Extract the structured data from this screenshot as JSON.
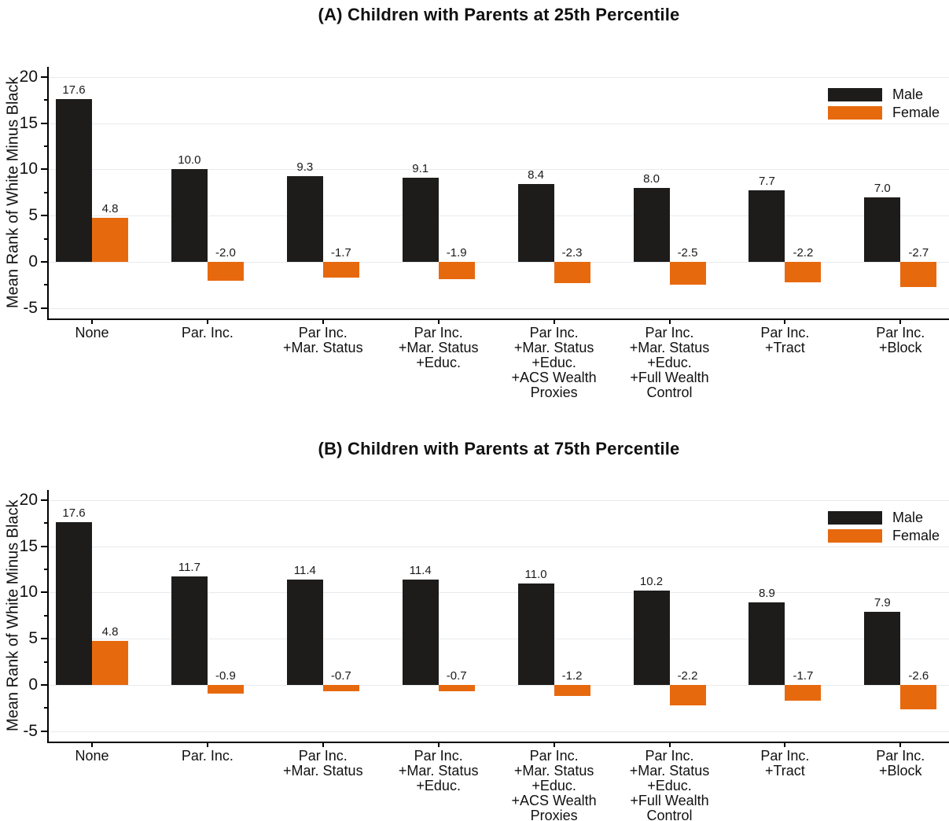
{
  "colors": {
    "male": "#1d1c1b",
    "female": "#e7690e",
    "grid": "#e8eaed",
    "axis": "#000000"
  },
  "chart_data": [
    {
      "type": "bar",
      "title": "(A) Children with Parents at 25th Percentile",
      "ylabel": "Mean Rank of White Minus Black",
      "yticks": [
        20,
        15,
        10,
        5,
        0,
        -5
      ],
      "ylim": [
        -5,
        20
      ],
      "grid": true,
      "legend_position": "top-right",
      "categories": [
        [
          "None"
        ],
        [
          "Par. Inc."
        ],
        [
          "Par Inc.",
          "+Mar. Status"
        ],
        [
          "Par Inc.",
          "+Mar. Status",
          "+Educ."
        ],
        [
          "Par Inc.",
          "+Mar. Status",
          "+Educ.",
          "+ACS Wealth",
          "Proxies"
        ],
        [
          "Par Inc.",
          "+Mar. Status",
          "+Educ.",
          "+Full Wealth",
          "Control"
        ],
        [
          "Par Inc.",
          "+Tract"
        ],
        [
          "Par Inc.",
          "+Block"
        ]
      ],
      "series": [
        {
          "name": "Male",
          "values": [
            17.6,
            10.0,
            9.3,
            9.1,
            8.4,
            8.0,
            7.7,
            7.0
          ],
          "labels": [
            "17.6",
            "10.0",
            "9.3",
            "9.1",
            "8.4",
            "8.0",
            "7.7",
            "7.0"
          ]
        },
        {
          "name": "Female",
          "values": [
            4.8,
            -2.0,
            -1.7,
            -1.9,
            -2.3,
            -2.5,
            -2.2,
            -2.7
          ],
          "labels": [
            "4.8",
            "-2.0",
            "-1.7",
            "-1.9",
            "-2.3",
            "-2.5",
            "-2.2",
            "-2.7"
          ]
        }
      ]
    },
    {
      "type": "bar",
      "title": "(B) Children with Parents at 75th Percentile",
      "ylabel": "Mean Rank of White Minus Black",
      "yticks": [
        20,
        15,
        10,
        5,
        0,
        -5
      ],
      "ylim": [
        -5,
        20
      ],
      "grid": true,
      "legend_position": "top-right",
      "categories": [
        [
          "None"
        ],
        [
          "Par. Inc."
        ],
        [
          "Par Inc.",
          "+Mar. Status"
        ],
        [
          "Par Inc.",
          "+Mar. Status",
          "+Educ."
        ],
        [
          "Par Inc.",
          "+Mar. Status",
          "+Educ.",
          "+ACS Wealth",
          "Proxies"
        ],
        [
          "Par Inc.",
          "+Mar. Status",
          "+Educ.",
          "+Full Wealth",
          "Control"
        ],
        [
          "Par Inc.",
          "+Tract"
        ],
        [
          "Par Inc.",
          "+Block"
        ]
      ],
      "series": [
        {
          "name": "Male",
          "values": [
            17.6,
            11.7,
            11.4,
            11.4,
            11.0,
            10.2,
            8.9,
            7.9
          ],
          "labels": [
            "17.6",
            "11.7",
            "11.4",
            "11.4",
            "11.0",
            "10.2",
            "8.9",
            "7.9"
          ]
        },
        {
          "name": "Female",
          "values": [
            4.8,
            -0.9,
            -0.7,
            -0.7,
            -1.2,
            -2.2,
            -1.7,
            -2.6
          ],
          "labels": [
            "4.8",
            "-0.9",
            "-0.7",
            "-0.7",
            "-1.2",
            "-2.2",
            "-1.7",
            "-2.6"
          ]
        }
      ]
    }
  ]
}
